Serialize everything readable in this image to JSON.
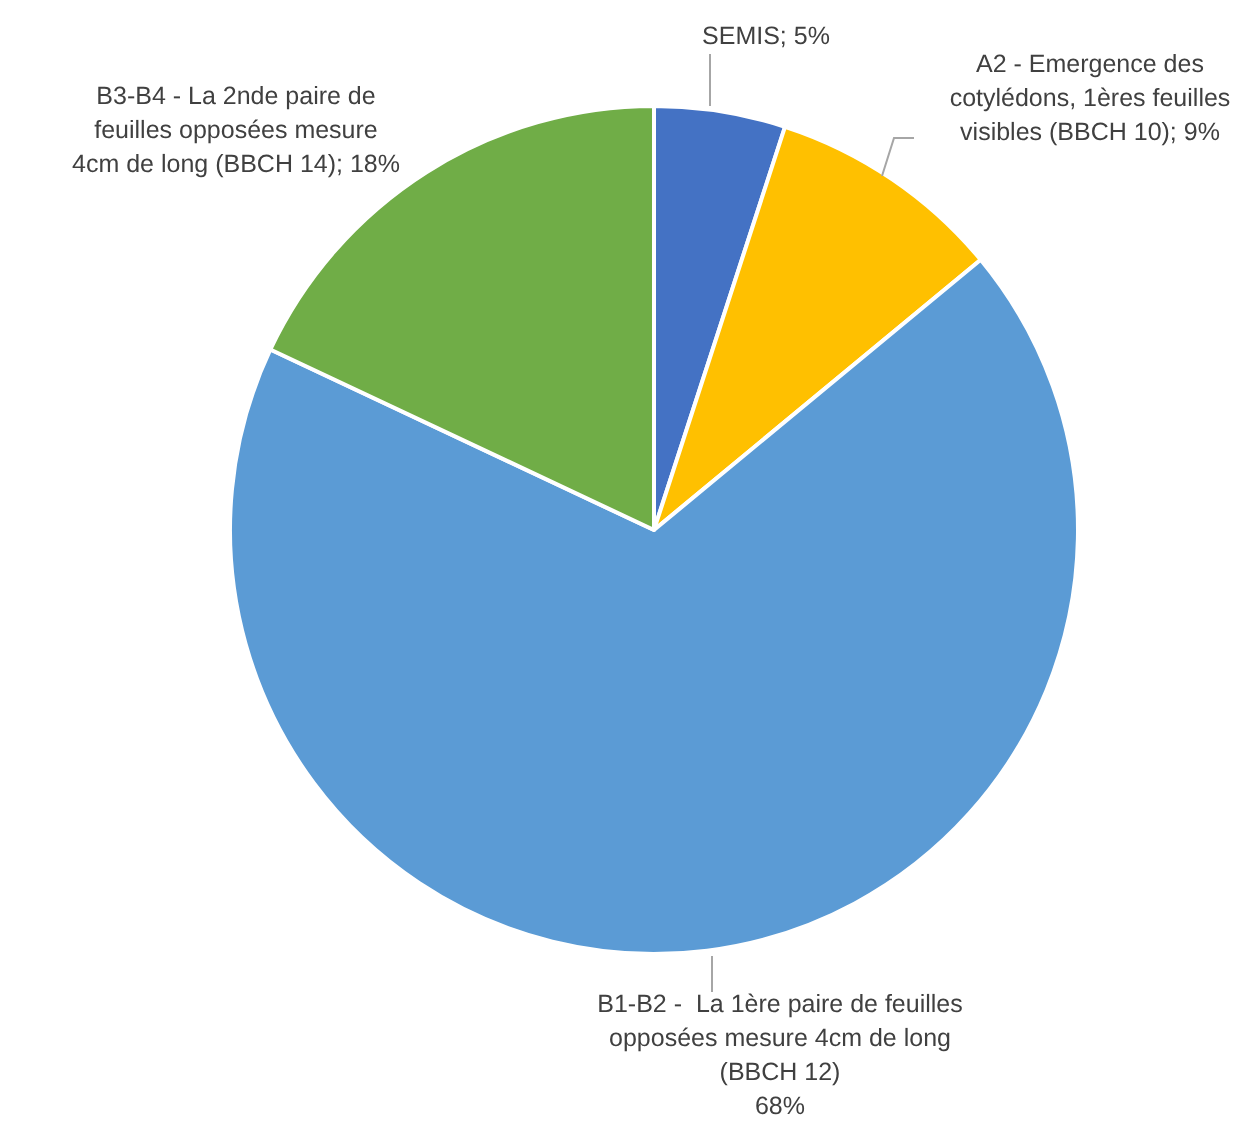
{
  "chart_data": {
    "type": "pie",
    "categories": [
      "SEMIS",
      "A2 - Emergence des cotylédons, 1ères feuilles visibles (BBCH 10)",
      "B1-B2 -  La 1ère paire de feuilles opposées mesure 4cm de long (BBCH 12)",
      "B3-B4 - La 2nde paire de feuilles opposées mesure 4cm de long (BBCH 14)"
    ],
    "values": [
      5,
      9,
      68,
      18
    ],
    "value_labels": [
      "5%",
      "9%",
      "68%",
      "18%"
    ],
    "colors": [
      "#4472c4",
      "#ffc000",
      "#5b9bd5",
      "#70ad47"
    ]
  }
}
